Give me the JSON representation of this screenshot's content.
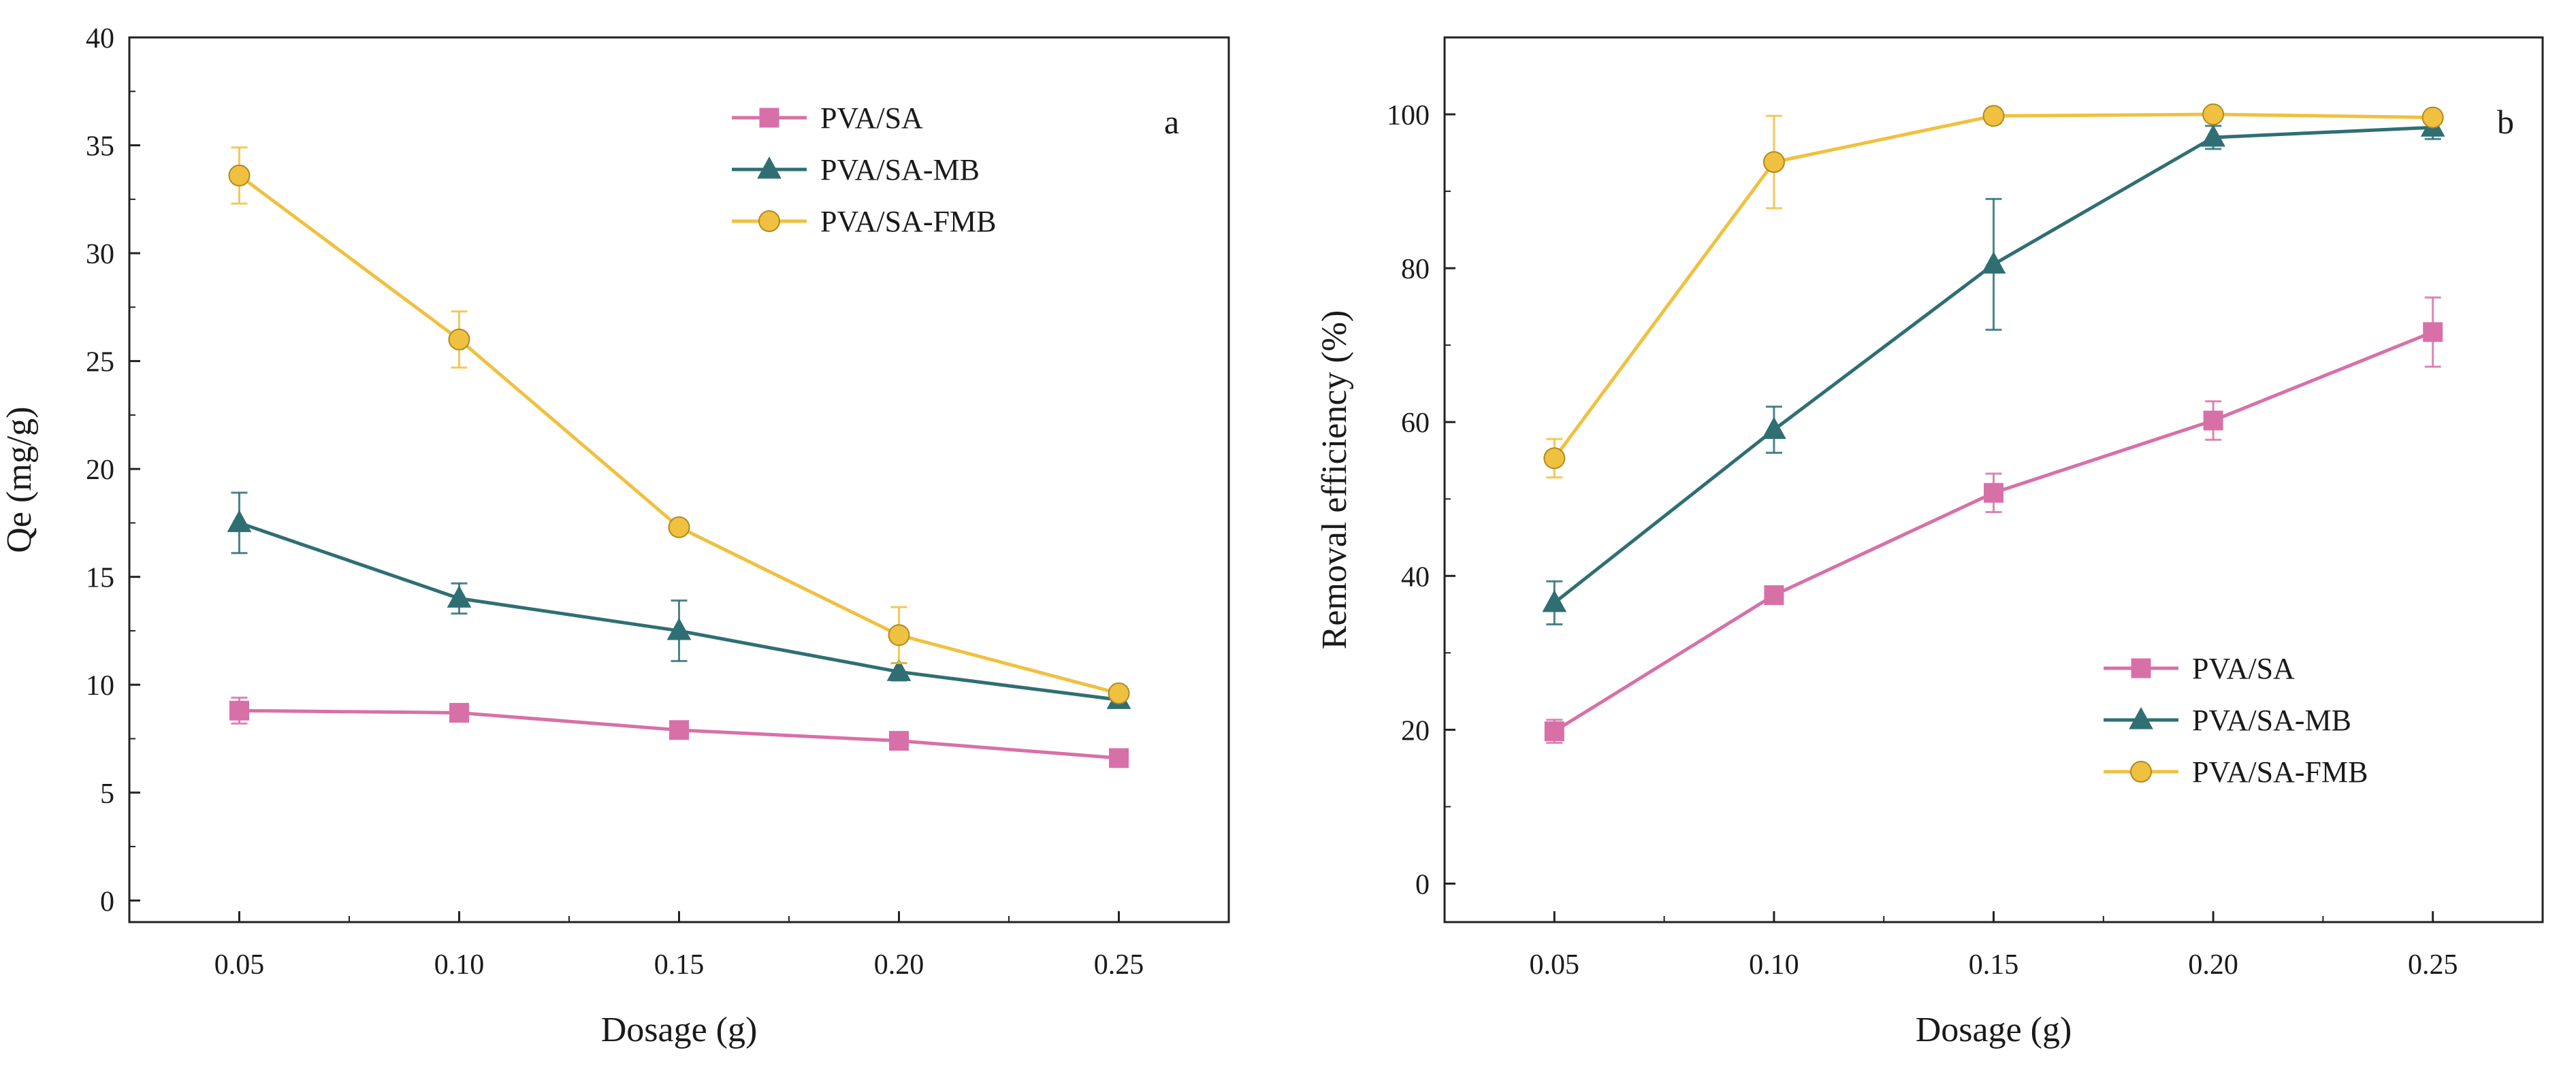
{
  "chart_data": [
    {
      "type": "line",
      "panel": "a",
      "xlabel": "Dosage (g)",
      "ylabel": "Qe (mg/g)",
      "x": [
        0.05,
        0.1,
        0.15,
        0.2,
        0.25
      ],
      "x_tick_labels": [
        "0.05",
        "0.10",
        "0.15",
        "0.20",
        "0.25"
      ],
      "xlim": [
        0.025,
        0.275
      ],
      "ylim": [
        -1,
        40
      ],
      "y_ticks": [
        0,
        5,
        10,
        15,
        20,
        25,
        30,
        35,
        40
      ],
      "legend_position": "top-right",
      "series": [
        {
          "name": "PVA/SA",
          "marker": "square",
          "color": "#d870a8",
          "values": [
            8.8,
            8.7,
            7.9,
            7.4,
            6.6
          ],
          "errors": [
            0.6,
            0.3,
            0.3,
            0.3,
            0.3
          ]
        },
        {
          "name": "PVA/SA-MB",
          "marker": "triangle",
          "color": "#2f6f74",
          "values": [
            17.5,
            14.0,
            12.5,
            10.6,
            9.3
          ],
          "errors": [
            1.4,
            0.7,
            1.4,
            0.4,
            0.3
          ]
        },
        {
          "name": "PVA/SA-FMB",
          "marker": "circle",
          "color": "#f0c040",
          "values": [
            33.6,
            26.0,
            17.3,
            12.3,
            9.6
          ],
          "errors": [
            1.3,
            1.3,
            0.3,
            1.3,
            0.3
          ]
        }
      ]
    },
    {
      "type": "line",
      "panel": "b",
      "xlabel": "Dosage (g)",
      "ylabel": "Removal efficiency (%)",
      "x": [
        0.05,
        0.1,
        0.15,
        0.2,
        0.25
      ],
      "x_tick_labels": [
        "0.05",
        "0.10",
        "0.15",
        "0.20",
        "0.25"
      ],
      "xlim": [
        0.025,
        0.275
      ],
      "ylim": [
        -5,
        110
      ],
      "y_ticks": [
        0,
        20,
        40,
        60,
        80,
        100
      ],
      "legend_position": "bottom-right",
      "series": [
        {
          "name": "PVA/SA",
          "marker": "square",
          "color": "#d870a8",
          "values": [
            19.8,
            37.5,
            50.8,
            60.2,
            71.7
          ],
          "errors": [
            1.5,
            1.0,
            2.5,
            2.5,
            4.5
          ]
        },
        {
          "name": "PVA/SA-MB",
          "marker": "triangle",
          "color": "#2f6f74",
          "values": [
            36.5,
            59.0,
            80.5,
            97.0,
            98.3
          ],
          "errors": [
            2.8,
            3.0,
            8.5,
            1.5,
            1.5
          ]
        },
        {
          "name": "PVA/SA-FMB",
          "marker": "circle",
          "color": "#f0c040",
          "values": [
            55.3,
            93.8,
            99.8,
            100.0,
            99.6
          ],
          "errors": [
            2.5,
            6.0,
            1.0,
            0.5,
            0.5
          ]
        }
      ]
    }
  ]
}
